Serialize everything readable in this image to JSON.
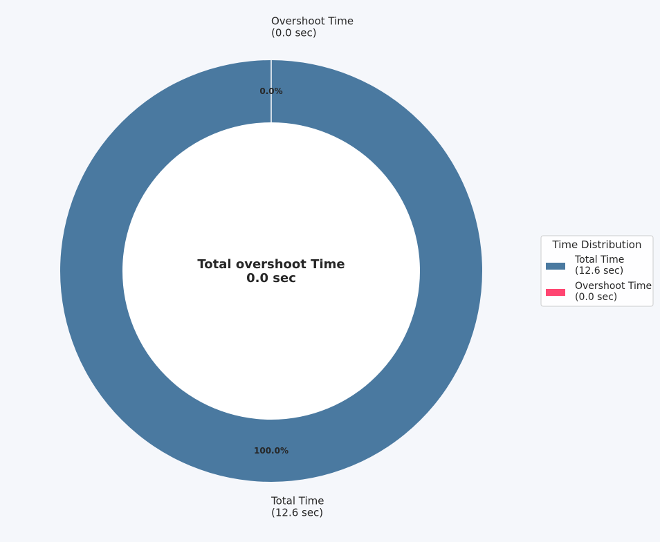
{
  "colors": {
    "background": "#f5f7fb",
    "text": "#262626",
    "slice_edge": "#ffffff",
    "hole": "#ffffff",
    "legend_bg": "#ffffff",
    "legend_border": "#cccccc"
  },
  "chart_data": {
    "type": "pie",
    "style": "donut",
    "start_angle_deg": 90,
    "direction": "counterclockwise",
    "slices": [
      {
        "label": "Total Time",
        "detail": "(12.6 sec)",
        "value": 12.6,
        "pct_label": "100.0%",
        "color": "#4a79a0"
      },
      {
        "label": "Overshoot Time",
        "detail": "(0.0 sec)",
        "value": 0.0,
        "pct_label": "0.0%",
        "color": "#ff4571"
      }
    ],
    "center_text": [
      "Total overshoot Time",
      "0.0 sec"
    ],
    "legend": {
      "title": "Time Distribution",
      "placement": "right",
      "entries": [
        {
          "lines": [
            "Total Time",
            "(12.6 sec)"
          ],
          "color": "#4a79a0"
        },
        {
          "lines": [
            "Overshoot Time",
            "(0.0 sec)"
          ],
          "color": "#ff4571"
        }
      ]
    }
  }
}
